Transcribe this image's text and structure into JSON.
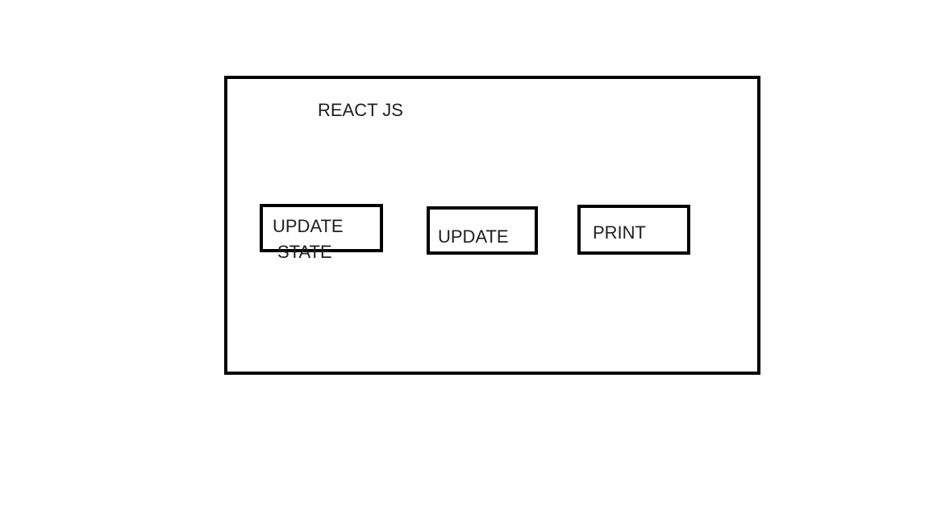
{
  "diagram": {
    "title": "REACT JS",
    "buttons": [
      {
        "label_line1": "UPDATE",
        "label_line2": "STATE"
      },
      {
        "label": "UPDATE"
      },
      {
        "label": "PRINT"
      }
    ]
  }
}
